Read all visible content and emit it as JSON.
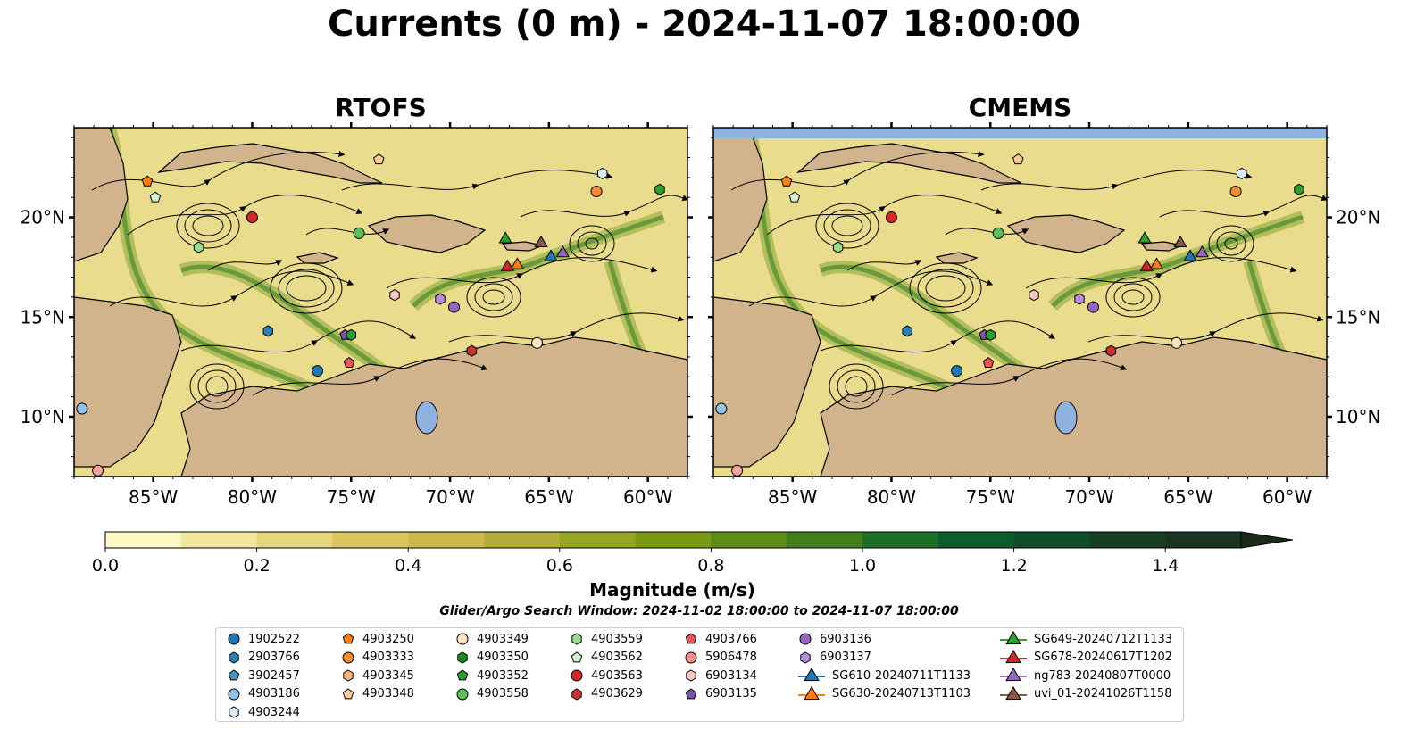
{
  "title": "Currents (0 m) - 2024-11-07 18:00:00",
  "panels": [
    {
      "id": "rtofs",
      "title": "RTOFS"
    },
    {
      "id": "cmems",
      "title": "CMEMS"
    }
  ],
  "search_window": "Glider/Argo Search Window: 2024-11-02 18:00:00 to 2024-11-07 18:00:00",
  "colorbar": {
    "label": "Magnitude (m/s)",
    "min": 0.0,
    "max": 1.5,
    "extend": "max",
    "ticks": [
      {
        "value": 0.0,
        "label": "0.0"
      },
      {
        "value": 0.2,
        "label": "0.2"
      },
      {
        "value": 0.4,
        "label": "0.4"
      },
      {
        "value": 0.6,
        "label": "0.6"
      },
      {
        "value": 0.8,
        "label": "0.8"
      },
      {
        "value": 1.0,
        "label": "1.0"
      },
      {
        "value": 1.2,
        "label": "1.2"
      },
      {
        "value": 1.4,
        "label": "1.4"
      }
    ],
    "colors": [
      "#fdf8c4",
      "#f3e7a0",
      "#e7d57e",
      "#dcc65f",
      "#cdb94b",
      "#b2ae38",
      "#96a524",
      "#7a9a16",
      "#5f8c16",
      "#41801d",
      "#1f7027",
      "#0c5c2c",
      "#0f4c2a",
      "#163f26",
      "#1b3321",
      "#1c2a1a"
    ]
  },
  "map": {
    "xlim": [
      -89,
      -58
    ],
    "ylim": [
      7,
      24.5
    ],
    "x_ticks": [
      {
        "value": -85,
        "label": "85°W"
      },
      {
        "value": -80,
        "label": "80°W"
      },
      {
        "value": -75,
        "label": "75°W"
      },
      {
        "value": -70,
        "label": "70°W"
      },
      {
        "value": -65,
        "label": "65°W"
      },
      {
        "value": -60,
        "label": "60°W"
      }
    ],
    "y_ticks": [
      {
        "value": 20,
        "label": "20°N"
      },
      {
        "value": 15,
        "label": "15°N"
      },
      {
        "value": 10,
        "label": "10°N"
      }
    ],
    "ocean_color": "#e9dc8c",
    "land_color": "#d2b48c",
    "lake_color": "#8fb3e0",
    "cmems_nodata_color": "#8fb3e0"
  },
  "chart_data": {
    "type": "scatter",
    "title": "Currents (0 m) - 2024-11-07 18:00:00",
    "x_axis": "longitude",
    "y_axis": "latitude",
    "series": [
      {
        "name": "1902522",
        "marker": "circle",
        "color": "#1f77b4",
        "lon": null,
        "lat": null
      },
      {
        "name": "2903766",
        "marker": "hexagon",
        "color": "#2f7fb8",
        "lon": -79.2,
        "lat": 14.3
      },
      {
        "name": "3902457",
        "marker": "pentagon",
        "color": "#4a93c9",
        "lon": null,
        "lat": null
      },
      {
        "name": "4903186",
        "marker": "circle",
        "color": "#8fc3ea",
        "lon": -88.6,
        "lat": 10.4
      },
      {
        "name": "4903244",
        "marker": "hexagon",
        "color": "#d7ebfa",
        "lon": -62.3,
        "lat": 22.2
      },
      {
        "name": "4903250",
        "marker": "pentagon",
        "color": "#ff7f0e",
        "lon": -85.3,
        "lat": 21.8
      },
      {
        "name": "4903333",
        "marker": "circle",
        "color": "#f58a2e",
        "lon": -62.6,
        "lat": 21.3
      },
      {
        "name": "4903345",
        "marker": "hexagon",
        "color": "#f9b27a",
        "lon": null,
        "lat": null
      },
      {
        "name": "4903348",
        "marker": "pentagon",
        "color": "#fcc99a",
        "lon": -73.6,
        "lat": 22.9
      },
      {
        "name": "4903349",
        "marker": "circle",
        "color": "#fde2c4",
        "lon": -65.6,
        "lat": 13.7
      },
      {
        "name": "4903350",
        "marker": "hexagon",
        "color": "#1f8a1f",
        "lon": null,
        "lat": null
      },
      {
        "name": "4903352",
        "marker": "pentagon",
        "color": "#2ca02c",
        "lon": null,
        "lat": null
      },
      {
        "name": "4903558",
        "marker": "circle",
        "color": "#5cbf5c",
        "lon": -74.6,
        "lat": 19.2
      },
      {
        "name": "4903559",
        "marker": "hexagon",
        "color": "#98df8a",
        "lon": -82.7,
        "lat": 18.5
      },
      {
        "name": "4903562",
        "marker": "pentagon",
        "color": "#d4f2cf",
        "lon": -84.9,
        "lat": 21.0
      },
      {
        "name": "4903563",
        "marker": "circle",
        "color": "#d62728",
        "lon": -80.0,
        "lat": 20.0
      },
      {
        "name": "4903629",
        "marker": "hexagon",
        "color": "#c83232",
        "lon": -68.9,
        "lat": 13.3
      },
      {
        "name": "4903766",
        "marker": "pentagon",
        "color": "#e8575a",
        "lon": -75.1,
        "lat": 12.7
      },
      {
        "name": "5906478",
        "marker": "circle",
        "color": "#f08a8a",
        "lon": null,
        "lat": null
      },
      {
        "name": "6903134",
        "marker": "hexagon",
        "color": "#f9c5c5",
        "lon": -72.8,
        "lat": 16.1
      },
      {
        "name": "6903135",
        "marker": "pentagon",
        "color": "#7b54a8",
        "lon": -75.3,
        "lat": 14.1
      },
      {
        "name": "6903136",
        "marker": "circle",
        "color": "#9467bd",
        "lon": -69.8,
        "lat": 15.5
      },
      {
        "name": "6903137",
        "marker": "hexagon",
        "color": "#b48fd9",
        "lon": -70.5,
        "lat": 15.9
      },
      {
        "name": "SG610-20240711T1133",
        "marker": "triangle",
        "color": "#1f77b4",
        "lon": -64.9,
        "lat": 18.0
      },
      {
        "name": "SG630-20240713T1103",
        "marker": "triangle",
        "color": "#ff7f0e",
        "lon": -66.6,
        "lat": 17.6
      },
      {
        "name": "SG649-20240712T1133",
        "marker": "triangle",
        "color": "#2ca02c",
        "lon": -67.2,
        "lat": 18.9
      },
      {
        "name": "SG678-20240617T1202",
        "marker": "triangle",
        "color": "#d62728",
        "lon": -67.1,
        "lat": 17.5
      },
      {
        "name": "ng783-20240807T0000",
        "marker": "triangle",
        "color": "#9467bd",
        "lon": -64.3,
        "lat": 18.2
      },
      {
        "name": "uvi_01-20241026T1158",
        "marker": "triangle",
        "color": "#8c564b",
        "lon": -65.4,
        "lat": 18.7
      }
    ]
  },
  "extra_markers": [
    {
      "marker": "hexagon",
      "color": "#2ca02c",
      "lon": -59.4,
      "lat": 21.4
    },
    {
      "marker": "hexagon",
      "color": "#2ca02c",
      "lon": -75.0,
      "lat": 14.1
    },
    {
      "marker": "circle",
      "color": "#f4a3a3",
      "lon": -87.8,
      "lat": 7.3
    },
    {
      "marker": "circle",
      "color": "#1f77b4",
      "lon": -76.7,
      "lat": 12.3
    }
  ],
  "legend": {
    "columns": [
      [
        "1902522",
        "2903766",
        "3902457",
        "4903186",
        "4903244"
      ],
      [
        "4903250",
        "4903333",
        "4903345",
        "4903348"
      ],
      [
        "4903349",
        "4903350",
        "4903352",
        "4903558"
      ],
      [
        "4903559",
        "4903562",
        "4903563",
        "4903629"
      ],
      [
        "4903766",
        "5906478",
        "6903134",
        "6903135"
      ],
      [
        "6903136",
        "6903137",
        "SG610-20240711T1133",
        "SG630-20240713T1103"
      ],
      [
        "SG649-20240712T1133",
        "SG678-20240617T1202",
        "ng783-20240807T0000",
        "uvi_01-20241026T1158"
      ]
    ]
  }
}
